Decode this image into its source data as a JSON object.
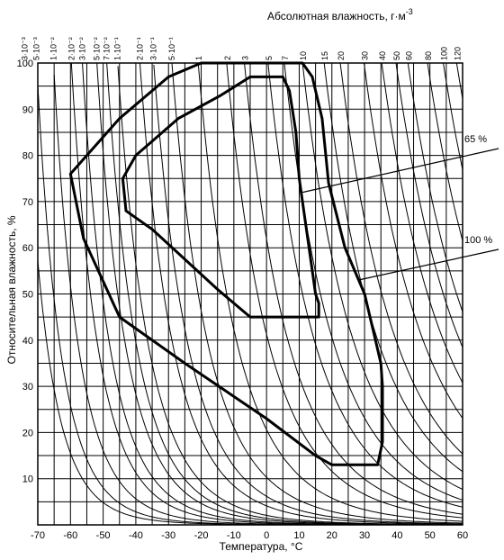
{
  "chart_data": {
    "type": "line",
    "title": "",
    "xlabel": "Температура, °C",
    "ylabel": "Относительная влажность, %",
    "x2label": "Абсолютная влажность, г·м",
    "x2label_sup": "-3",
    "xlim": [
      -70,
      60
    ],
    "ylim": [
      0,
      100
    ],
    "x_ticks": [
      "-70",
      "-60",
      "-50",
      "-40",
      "-30",
      "-20",
      "-10",
      "0",
      "10",
      "20",
      "30",
      "40",
      "50",
      "60"
    ],
    "y_ticks": [
      "10",
      "20",
      "30",
      "40",
      "50",
      "60",
      "70",
      "80",
      "90",
      "100"
    ],
    "grid": true,
    "top_axis_ticks": [
      {
        "label": "3·10⁻³",
        "value": 0.003
      },
      {
        "label": "5·10⁻³",
        "value": 0.005
      },
      {
        "label": "1·10⁻²",
        "value": 0.01
      },
      {
        "label": "2·10⁻²",
        "value": 0.02
      },
      {
        "label": "3·10⁻²",
        "value": 0.03
      },
      {
        "label": "5·10⁻²",
        "value": 0.05
      },
      {
        "label": "7·10⁻²",
        "value": 0.07
      },
      {
        "label": "1·10⁻¹",
        "value": 0.1
      },
      {
        "label": "2·10⁻¹",
        "value": 0.2
      },
      {
        "label": "3·10⁻¹",
        "value": 0.3
      },
      {
        "label": "5·10⁻¹",
        "value": 0.5
      },
      {
        "label": "1",
        "value": 1
      },
      {
        "label": "2",
        "value": 2
      },
      {
        "label": "3",
        "value": 3
      },
      {
        "label": "5",
        "value": 5
      },
      {
        "label": "7",
        "value": 7
      },
      {
        "label": "10",
        "value": 10
      },
      {
        "label": "15",
        "value": 15
      },
      {
        "label": "20",
        "value": 20
      },
      {
        "label": "30",
        "value": 30
      },
      {
        "label": "40",
        "value": 40
      },
      {
        "label": "50",
        "value": 50
      },
      {
        "label": "60",
        "value": 60
      },
      {
        "label": "80",
        "value": 80
      },
      {
        "label": "100",
        "value": 100
      },
      {
        "label": "120",
        "value": 120
      }
    ],
    "series": [
      {
        "name": "100 %",
        "points": [
          [
            -10,
            100
          ],
          [
            11,
            100
          ],
          [
            14,
            97
          ],
          [
            17,
            88
          ],
          [
            19,
            74
          ],
          [
            24,
            60
          ],
          [
            30,
            50
          ],
          [
            33,
            41
          ],
          [
            35,
            35
          ],
          [
            35.5,
            30
          ],
          [
            35.5,
            18
          ],
          [
            34,
            13
          ],
          [
            20,
            13
          ],
          [
            15,
            15
          ],
          [
            0,
            23
          ],
          [
            -25,
            35
          ],
          [
            -45,
            45
          ],
          [
            -56,
            62
          ],
          [
            -60,
            76
          ],
          [
            -45,
            88
          ],
          [
            -30,
            97
          ],
          [
            -20,
            100
          ],
          [
            -10,
            100
          ]
        ]
      },
      {
        "name": "65 %",
        "points": [
          [
            0,
            97
          ],
          [
            5,
            97
          ],
          [
            7,
            94
          ],
          [
            9,
            85
          ],
          [
            10,
            75
          ],
          [
            11,
            70
          ],
          [
            14,
            55
          ],
          [
            15,
            50
          ],
          [
            16,
            48
          ],
          [
            16,
            45
          ],
          [
            14,
            45
          ],
          [
            0,
            45
          ],
          [
            -5,
            45
          ],
          [
            -15,
            51
          ],
          [
            -35,
            64
          ],
          [
            -43,
            68
          ],
          [
            -44,
            75
          ],
          [
            -40,
            80
          ],
          [
            -27,
            88
          ],
          [
            -14,
            93
          ],
          [
            -5,
            97
          ],
          [
            0,
            97
          ]
        ]
      }
    ],
    "annotations": [
      {
        "label": "65 %",
        "target": [
          11,
          72
        ]
      },
      {
        "label": "100 %",
        "target": [
          28,
          53
        ]
      }
    ]
  }
}
